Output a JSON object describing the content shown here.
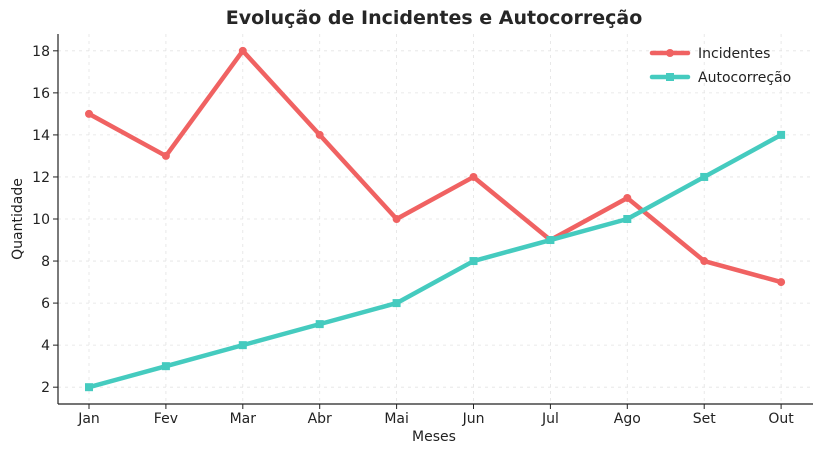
{
  "chart_data": {
    "type": "line",
    "title": "Evolução de Incidentes e Autocorreção",
    "xlabel": "Meses",
    "ylabel": "Quantidade",
    "categories": [
      "Jan",
      "Fev",
      "Mar",
      "Abr",
      "Mai",
      "Jun",
      "Jul",
      "Ago",
      "Set",
      "Out"
    ],
    "yticks": [
      2,
      4,
      6,
      8,
      10,
      12,
      14,
      16,
      18
    ],
    "ylim": [
      1.2,
      18.8
    ],
    "grid": true,
    "legend_position": "top-right",
    "series": [
      {
        "name": "Incidentes",
        "color": "#f06262",
        "marker": "circle",
        "values": [
          15,
          13,
          18,
          14,
          10,
          12,
          9,
          11,
          8,
          7
        ]
      },
      {
        "name": "Autocorreção",
        "color": "#45cbbf",
        "marker": "square",
        "values": [
          2,
          3,
          4,
          5,
          6,
          8,
          9,
          10,
          12,
          14
        ]
      }
    ]
  }
}
